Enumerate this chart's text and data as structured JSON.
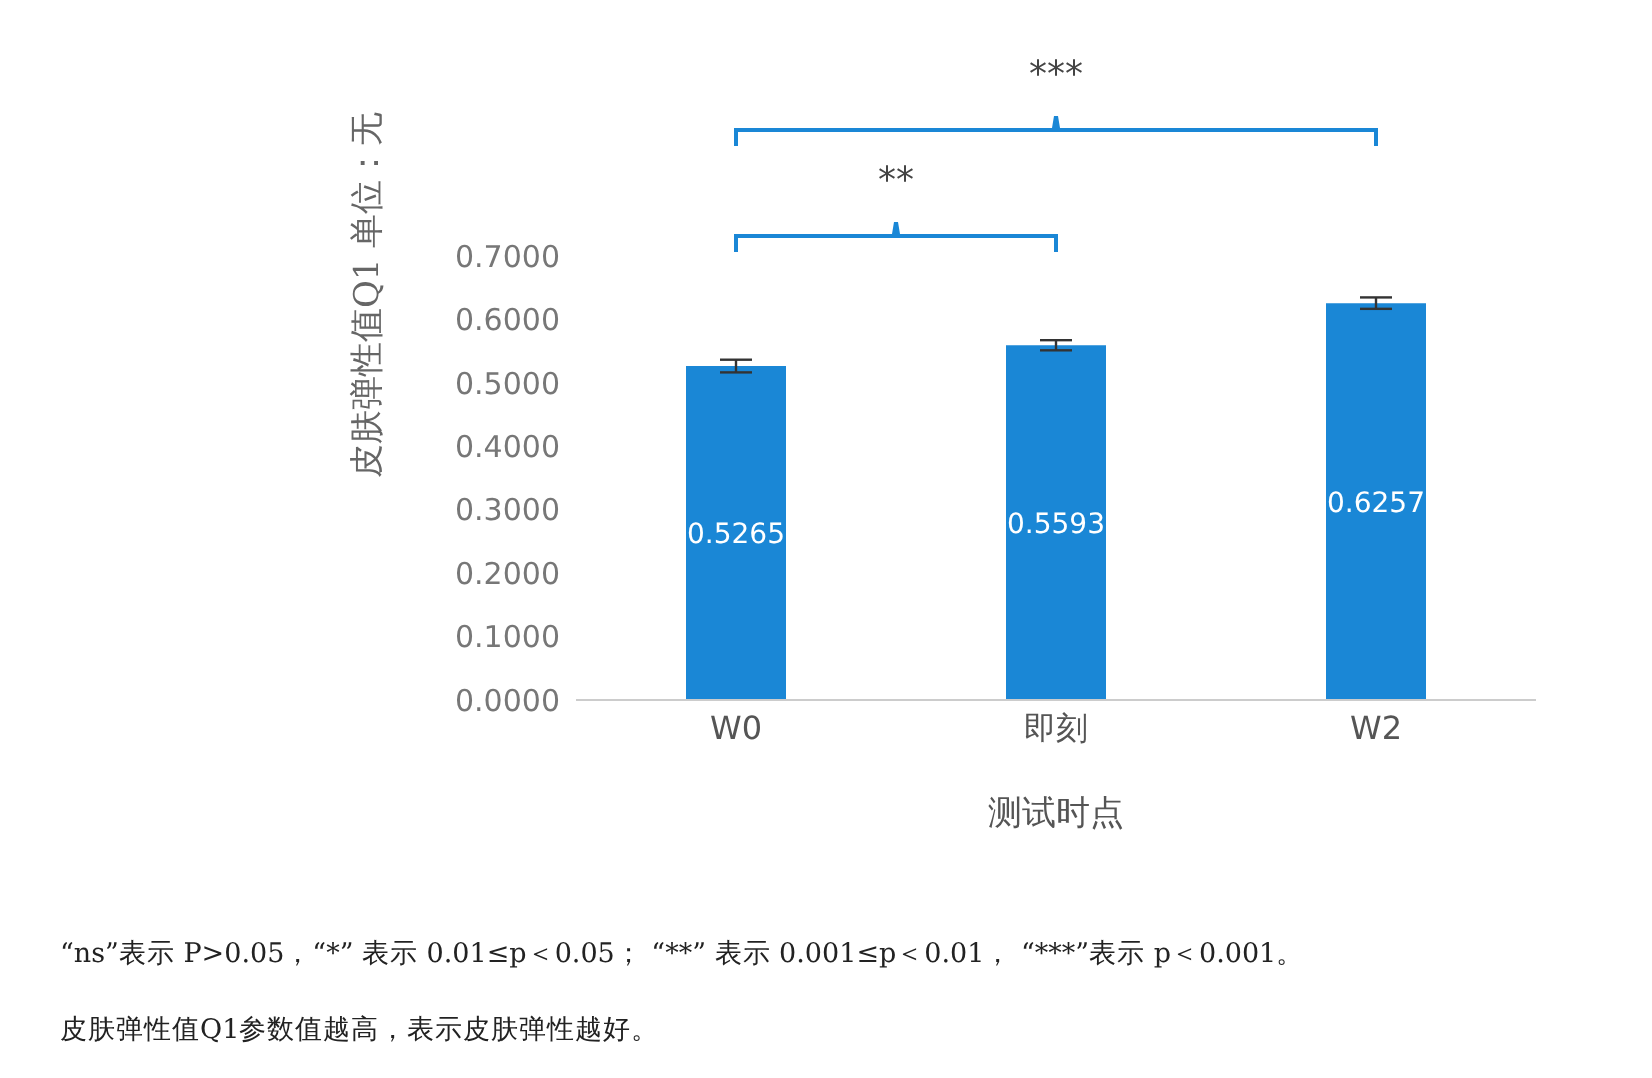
{
  "chart_data": {
    "type": "bar",
    "xlabel": "测试时点",
    "ylabel": "皮肤弹性值Q1  单位：无",
    "categories": [
      "W0",
      "即刻",
      "W2"
    ],
    "values": [
      0.5265,
      0.5593,
      0.6257
    ],
    "errors": [
      0.01,
      0.008,
      0.009
    ],
    "color": "#1a87d6",
    "data_labels": true,
    "ylim": [
      0,
      0.7
    ],
    "yticks": [
      {
        "value": 0,
        "label": "0.0000"
      },
      {
        "value": 0.1,
        "label": "0.1000"
      },
      {
        "value": 0.2,
        "label": "0.2000"
      },
      {
        "value": 0.3,
        "label": "0.3000"
      },
      {
        "value": 0.4,
        "label": "0.4000"
      },
      {
        "value": 0.5,
        "label": "0.5000"
      },
      {
        "value": 0.6,
        "label": "0.6000"
      },
      {
        "value": 0.7,
        "label": "0.7000"
      }
    ],
    "grid": false,
    "legend": false,
    "annotations": [
      "**",
      "***",
      "“ns”表示 P>0.05，“*” 表示 0.01≤p＜0.05； “**” 表示 0.001≤p＜0.01， “***”表示 p＜0.001。",
      "皮肤弹性值Q1参数值越高，表示皮肤弹性越好。"
    ]
  }
}
